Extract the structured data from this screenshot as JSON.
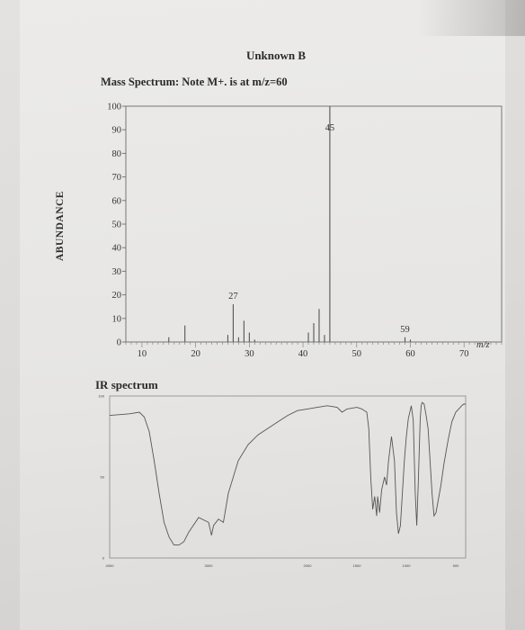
{
  "page": {
    "title": "Unknown B",
    "ms_heading": "Mass Spectrum: Note M+. is at m/z=60",
    "ir_heading": "IR spectrum"
  },
  "chart_data": [
    {
      "type": "bar",
      "name": "mass-spectrum",
      "title": "",
      "xlabel": "m/z",
      "ylabel": "ABUNDANCE",
      "xlim": [
        7,
        77
      ],
      "ylim": [
        0,
        100
      ],
      "x_ticks": [
        10,
        20,
        30,
        40,
        50,
        60,
        70
      ],
      "y_ticks": [
        0,
        10,
        20,
        30,
        40,
        50,
        60,
        70,
        80,
        90,
        100
      ],
      "peaks": [
        {
          "mz": 15,
          "abundance": 2
        },
        {
          "mz": 18,
          "abundance": 7
        },
        {
          "mz": 26,
          "abundance": 3
        },
        {
          "mz": 27,
          "abundance": 16
        },
        {
          "mz": 28,
          "abundance": 2
        },
        {
          "mz": 29,
          "abundance": 9
        },
        {
          "mz": 30,
          "abundance": 4
        },
        {
          "mz": 31,
          "abundance": 1
        },
        {
          "mz": 41,
          "abundance": 4
        },
        {
          "mz": 42,
          "abundance": 8
        },
        {
          "mz": 43,
          "abundance": 14
        },
        {
          "mz": 44,
          "abundance": 3
        },
        {
          "mz": 45,
          "abundance": 100
        },
        {
          "mz": 59,
          "abundance": 2
        },
        {
          "mz": 60,
          "abundance": 1
        }
      ],
      "peak_labels": [
        {
          "mz": 27,
          "text": "27"
        },
        {
          "mz": 45,
          "text": "45"
        },
        {
          "mz": 59,
          "text": "59"
        }
      ]
    },
    {
      "type": "line",
      "name": "ir-spectrum",
      "title": "",
      "xlabel": "",
      "ylabel": "",
      "xlim": [
        4000,
        400
      ],
      "ylim": [
        0,
        100
      ],
      "x_ticks": [
        4000,
        3000,
        2000,
        1500,
        1000,
        500
      ],
      "y_ticks": [
        0,
        50,
        100
      ],
      "points": [
        [
          4000,
          88
        ],
        [
          3800,
          89
        ],
        [
          3700,
          90
        ],
        [
          3650,
          87
        ],
        [
          3600,
          78
        ],
        [
          3550,
          60
        ],
        [
          3500,
          40
        ],
        [
          3450,
          22
        ],
        [
          3400,
          13
        ],
        [
          3350,
          8
        ],
        [
          3300,
          8
        ],
        [
          3250,
          10
        ],
        [
          3200,
          16
        ],
        [
          3100,
          25
        ],
        [
          3000,
          22
        ],
        [
          2970,
          14
        ],
        [
          2950,
          20
        ],
        [
          2900,
          24
        ],
        [
          2850,
          22
        ],
        [
          2800,
          40
        ],
        [
          2700,
          60
        ],
        [
          2600,
          70
        ],
        [
          2500,
          76
        ],
        [
          2400,
          80
        ],
        [
          2300,
          84
        ],
        [
          2200,
          88
        ],
        [
          2100,
          91
        ],
        [
          2000,
          92
        ],
        [
          1900,
          93
        ],
        [
          1800,
          94
        ],
        [
          1700,
          93
        ],
        [
          1650,
          90
        ],
        [
          1600,
          92
        ],
        [
          1500,
          93
        ],
        [
          1450,
          92
        ],
        [
          1400,
          90
        ],
        [
          1380,
          80
        ],
        [
          1360,
          50
        ],
        [
          1340,
          30
        ],
        [
          1320,
          38
        ],
        [
          1300,
          26
        ],
        [
          1290,
          38
        ],
        [
          1270,
          28
        ],
        [
          1250,
          42
        ],
        [
          1220,
          50
        ],
        [
          1200,
          45
        ],
        [
          1180,
          60
        ],
        [
          1150,
          75
        ],
        [
          1120,
          60
        ],
        [
          1100,
          28
        ],
        [
          1080,
          15
        ],
        [
          1060,
          20
        ],
        [
          1040,
          40
        ],
        [
          1020,
          60
        ],
        [
          1000,
          75
        ],
        [
          980,
          86
        ],
        [
          950,
          94
        ],
        [
          930,
          85
        ],
        [
          910,
          40
        ],
        [
          895,
          20
        ],
        [
          880,
          45
        ],
        [
          860,
          85
        ],
        [
          850,
          94
        ],
        [
          840,
          96
        ],
        [
          820,
          95
        ],
        [
          800,
          88
        ],
        [
          780,
          80
        ],
        [
          760,
          60
        ],
        [
          740,
          40
        ],
        [
          720,
          26
        ],
        [
          700,
          28
        ],
        [
          650,
          45
        ],
        [
          620,
          58
        ],
        [
          580,
          72
        ],
        [
          540,
          84
        ],
        [
          500,
          90
        ],
        [
          470,
          92
        ],
        [
          440,
          94
        ],
        [
          420,
          95
        ],
        [
          400,
          95
        ]
      ]
    }
  ]
}
